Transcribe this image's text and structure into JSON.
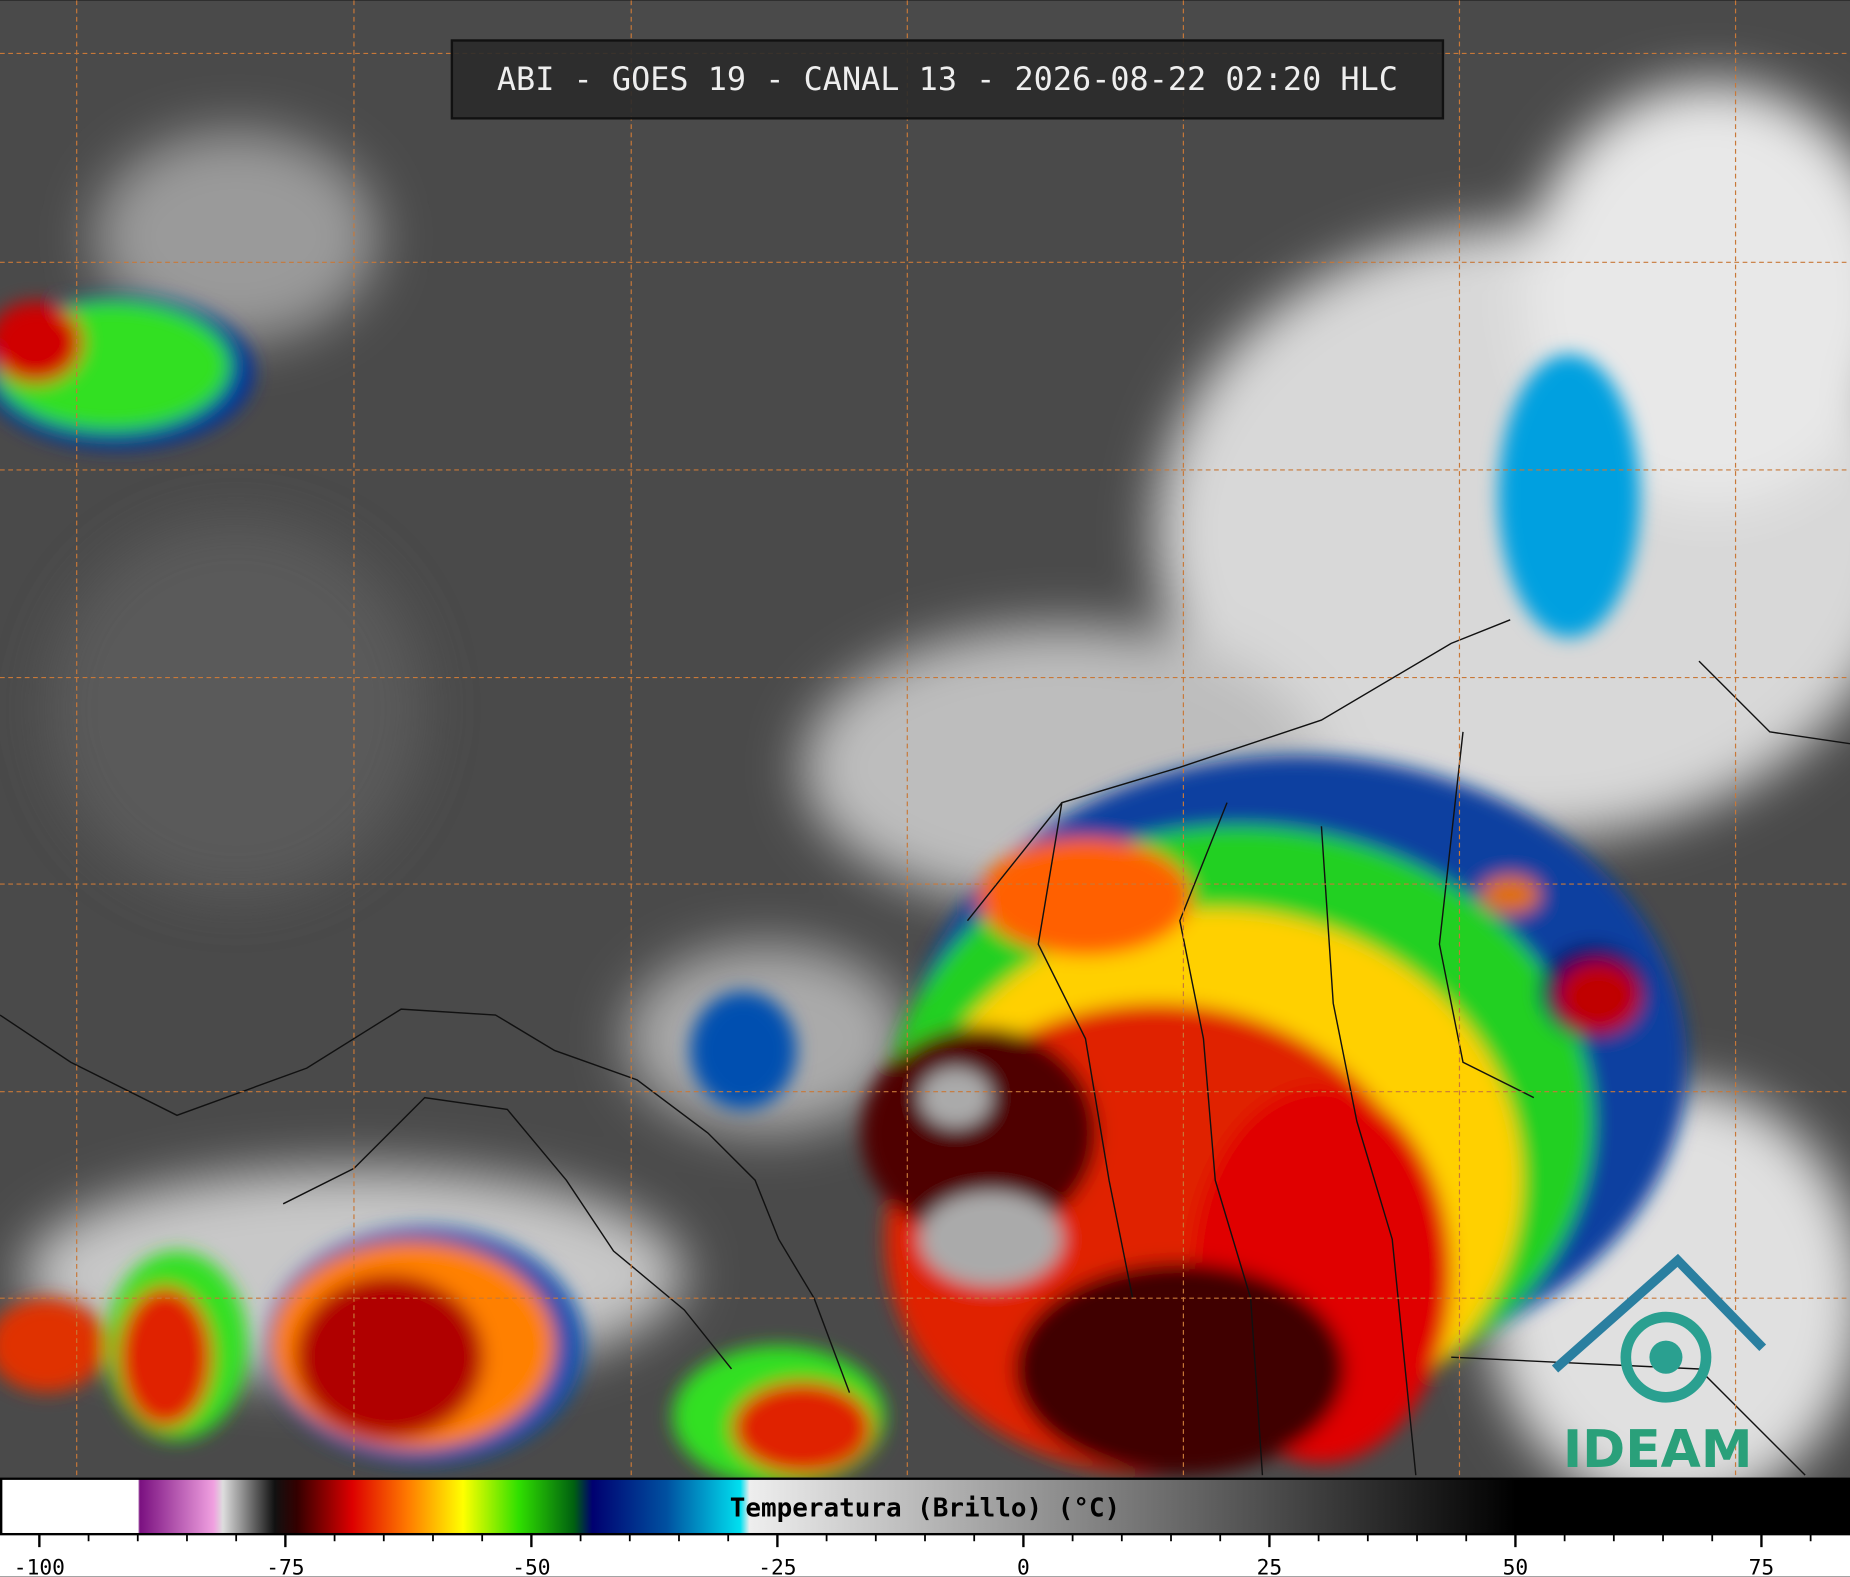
{
  "header": {
    "title": "ABI - GOES 19 - CANAL 13 - 2026-08-22 02:20 HLC"
  },
  "colorbar": {
    "label": "Temperatura (Brillo) (°C)",
    "range": [
      -104,
      84
    ],
    "ticks": [
      -100,
      -75,
      -50,
      -25,
      0,
      25,
      50,
      75
    ],
    "minor_step": 5
  },
  "logo": {
    "text": "IDEAM"
  }
}
